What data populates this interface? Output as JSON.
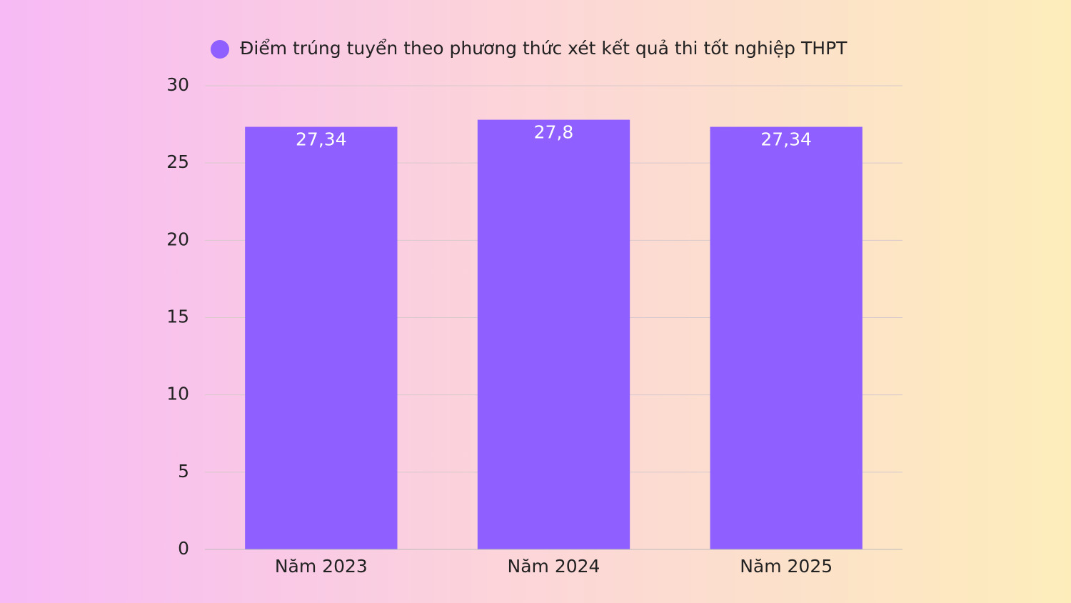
{
  "chart_data": {
    "type": "bar",
    "categories": [
      "Năm 2023",
      "Năm 2024",
      "Năm 2025"
    ],
    "series": [
      {
        "name": "Điểm trúng tuyển theo phương thức xét kết quả thi tốt nghiệp THPT",
        "color": "#8f5fff",
        "values": [
          27.34,
          27.8,
          27.34
        ],
        "value_labels": [
          "27,34",
          "27,8",
          "27,34"
        ]
      }
    ],
    "ylim": [
      0,
      30
    ],
    "yticks": [
      0,
      5,
      10,
      15,
      20,
      25,
      30
    ],
    "grid": true,
    "legend": "top"
  }
}
